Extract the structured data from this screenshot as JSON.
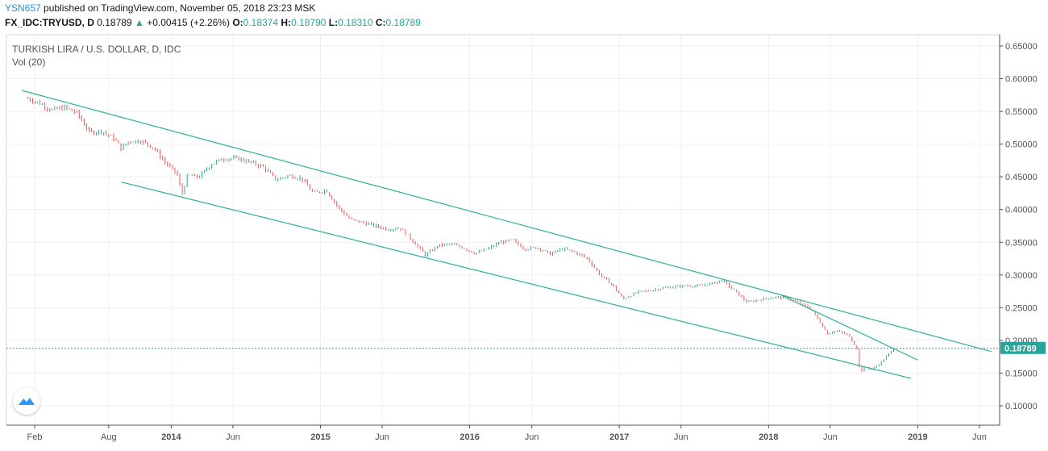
{
  "header": {
    "user": "YSN657",
    "published_text": " published on TradingView.com, November 05, 2018 23:23 MSK"
  },
  "symbol_line": {
    "symbol": "FX_IDC:TRYUSD, D",
    "last": "0.18789",
    "change": "+0.00415 (+2.26%)",
    "open_label": "O:",
    "open": "0.18374",
    "high_label": "H:",
    "high": "0.18790",
    "low_label": "L:",
    "low": "0.18310",
    "close_label": "C:",
    "close": "0.18789"
  },
  "chart_data": {
    "type": "candlestick",
    "title": "TURKISH LIRA / U.S. DOLLAR, D, IDC",
    "subtitle": "Vol (20)",
    "x_ticks": [
      "Feb",
      "Aug",
      "2014",
      "Jun",
      "2015",
      "Jun",
      "2016",
      "Jun",
      "2017",
      "Jun",
      "2018",
      "Jun",
      "2019",
      "Jun"
    ],
    "y_ticks": [
      "0.65000",
      "0.60000",
      "0.55000",
      "0.50000",
      "0.45000",
      "0.40000",
      "0.35000",
      "0.30000",
      "0.25000",
      "0.20000",
      "0.15000",
      "0.10000"
    ],
    "ylim": [
      0.08,
      0.66
    ],
    "last_price": 0.18789,
    "last_price_label": "0.18789",
    "grid": true,
    "colors": {
      "up": "#26a69a",
      "down": "#ef5350",
      "trendline": "#2bb397",
      "price_line": "#26a69a",
      "grid": "#eef1f4"
    },
    "price_path": [
      [
        "2013-01-15",
        0.57
      ],
      [
        "2013-02-15",
        0.562
      ],
      [
        "2013-03-15",
        0.552
      ],
      [
        "2013-04-15",
        0.556
      ],
      [
        "2013-05-15",
        0.548
      ],
      [
        "2013-06-15",
        0.518
      ],
      [
        "2013-07-15",
        0.52
      ],
      [
        "2013-08-15",
        0.508
      ],
      [
        "2013-09-01",
        0.493
      ],
      [
        "2013-09-20",
        0.505
      ],
      [
        "2013-10-20",
        0.505
      ],
      [
        "2013-11-20",
        0.494
      ],
      [
        "2013-12-20",
        0.47
      ],
      [
        "2014-01-15",
        0.455
      ],
      [
        "2014-01-27",
        0.423
      ],
      [
        "2014-02-10",
        0.452
      ],
      [
        "2014-03-10",
        0.45
      ],
      [
        "2014-04-10",
        0.47
      ],
      [
        "2014-05-10",
        0.478
      ],
      [
        "2014-06-15",
        0.478
      ],
      [
        "2014-07-15",
        0.472
      ],
      [
        "2014-08-15",
        0.465
      ],
      [
        "2014-09-15",
        0.445
      ],
      [
        "2014-10-15",
        0.452
      ],
      [
        "2014-11-15",
        0.448
      ],
      [
        "2014-12-15",
        0.425
      ],
      [
        "2015-01-15",
        0.43
      ],
      [
        "2015-02-15",
        0.402
      ],
      [
        "2015-03-15",
        0.385
      ],
      [
        "2015-04-15",
        0.38
      ],
      [
        "2015-05-15",
        0.375
      ],
      [
        "2015-06-15",
        0.37
      ],
      [
        "2015-07-15",
        0.372
      ],
      [
        "2015-08-15",
        0.352
      ],
      [
        "2015-09-15",
        0.33
      ],
      [
        "2015-10-15",
        0.345
      ],
      [
        "2015-11-15",
        0.347
      ],
      [
        "2015-12-15",
        0.342
      ],
      [
        "2016-01-15",
        0.333
      ],
      [
        "2016-02-15",
        0.34
      ],
      [
        "2016-03-15",
        0.35
      ],
      [
        "2016-04-15",
        0.353
      ],
      [
        "2016-05-15",
        0.34
      ],
      [
        "2016-06-15",
        0.342
      ],
      [
        "2016-07-15",
        0.332
      ],
      [
        "2016-08-15",
        0.34
      ],
      [
        "2016-09-15",
        0.335
      ],
      [
        "2016-10-15",
        0.325
      ],
      [
        "2016-11-15",
        0.3
      ],
      [
        "2016-12-15",
        0.285
      ],
      [
        "2017-01-10",
        0.263
      ],
      [
        "2017-02-15",
        0.274
      ],
      [
        "2017-03-15",
        0.276
      ],
      [
        "2017-04-15",
        0.28
      ],
      [
        "2017-05-15",
        0.282
      ],
      [
        "2017-06-15",
        0.284
      ],
      [
        "2017-07-15",
        0.283
      ],
      [
        "2017-08-15",
        0.287
      ],
      [
        "2017-09-10",
        0.292
      ],
      [
        "2017-10-10",
        0.276
      ],
      [
        "2017-11-10",
        0.258
      ],
      [
        "2017-12-15",
        0.263
      ],
      [
        "2018-01-15",
        0.266
      ],
      [
        "2018-02-15",
        0.265
      ],
      [
        "2018-03-15",
        0.258
      ],
      [
        "2018-04-15",
        0.248
      ],
      [
        "2018-05-10",
        0.225
      ],
      [
        "2018-05-25",
        0.21
      ],
      [
        "2018-06-15",
        0.215
      ],
      [
        "2018-07-15",
        0.208
      ],
      [
        "2018-08-05",
        0.188
      ],
      [
        "2018-08-13",
        0.15
      ],
      [
        "2018-08-25",
        0.16
      ],
      [
        "2018-09-10",
        0.155
      ],
      [
        "2018-10-01",
        0.165
      ],
      [
        "2018-10-20",
        0.178
      ],
      [
        "2018-11-05",
        0.18789
      ]
    ],
    "trendlines": [
      {
        "from": [
          "2013-01-01",
          0.582
        ],
        "to": [
          "2019-06-30",
          0.183
        ]
      },
      {
        "from": [
          "2013-09-01",
          0.442
        ],
        "to": [
          "2018-12-15",
          0.142
        ]
      },
      {
        "from": [
          "2018-02-01",
          0.269
        ],
        "to": [
          "2019-01-01",
          0.17
        ]
      }
    ]
  }
}
